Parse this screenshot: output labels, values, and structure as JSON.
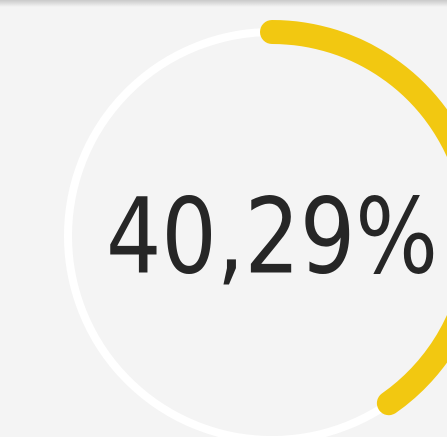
{
  "chart_data": {
    "type": "gauge",
    "values": [
      40.29
    ],
    "value_labels": [
      "40,29%"
    ],
    "ylim": [
      0,
      100
    ],
    "color": "#f2c811"
  }
}
